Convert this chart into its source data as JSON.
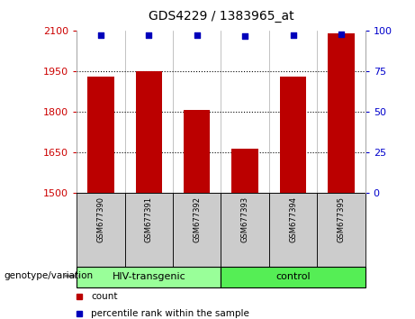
{
  "title": "GDS4229 / 1383965_at",
  "samples": [
    "GSM677390",
    "GSM677391",
    "GSM677392",
    "GSM677393",
    "GSM677394",
    "GSM677395"
  ],
  "counts": [
    1930,
    1950,
    1805,
    1665,
    1930,
    2090
  ],
  "percentile_ranks": [
    97.0,
    97.2,
    97.0,
    96.5,
    97.2,
    97.8
  ],
  "ylim_left": [
    1500,
    2100
  ],
  "yticks_left": [
    1500,
    1650,
    1800,
    1950,
    2100
  ],
  "ylim_right": [
    0,
    100
  ],
  "yticks_right": [
    0,
    25,
    50,
    75,
    100
  ],
  "bar_color": "#bb0000",
  "dot_color": "#0000bb",
  "groups": [
    {
      "label": "HIV-transgenic",
      "indices": [
        0,
        1,
        2
      ],
      "color": "#99ff99"
    },
    {
      "label": "control",
      "indices": [
        3,
        4,
        5
      ],
      "color": "#55ee55"
    }
  ],
  "group_label": "genotype/variation",
  "legend_count_color": "#bb0000",
  "legend_dot_color": "#0000bb",
  "legend_count_label": "count",
  "legend_dot_label": "percentile rank within the sample",
  "grid_color": "#000000",
  "bg_color": "#ffffff",
  "left_tick_color": "#cc0000",
  "right_tick_color": "#0000cc",
  "bar_width": 0.55,
  "label_area_color": "#cccccc",
  "label_area_border": "#000000",
  "n_samples": 6
}
